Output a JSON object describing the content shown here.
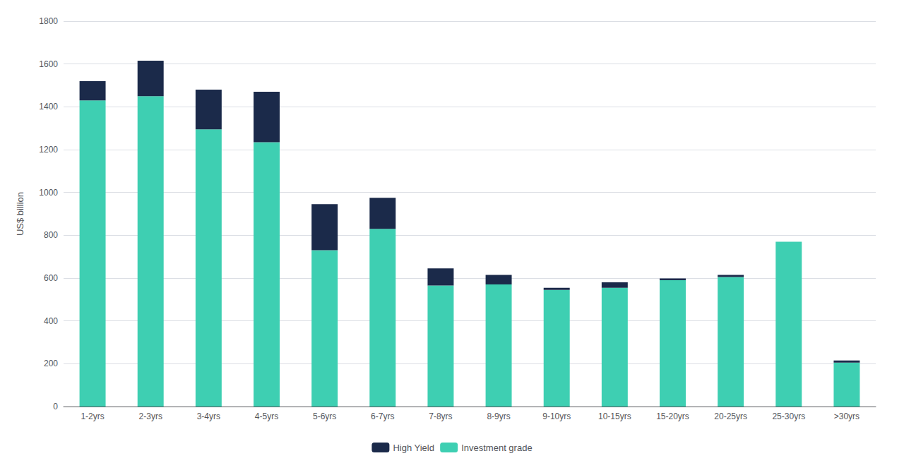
{
  "chart_data": {
    "type": "bar",
    "stacked": true,
    "categories": [
      "1-2yrs",
      "2-3yrs",
      "3-4yrs",
      "4-5yrs",
      "5-6yrs",
      "6-7yrs",
      "7-8yrs",
      "8-9yrs",
      "9-10yrs",
      "10-15yrs",
      "15-20yrs",
      "20-25yrs",
      "25-30yrs",
      ">30yrs"
    ],
    "series": [
      {
        "name": "Investment grade",
        "color": "#3ecfb2",
        "values": [
          1430,
          1450,
          1295,
          1235,
          730,
          830,
          565,
          570,
          545,
          555,
          590,
          605,
          770,
          205
        ]
      },
      {
        "name": "High Yield",
        "color": "#1b2a4a",
        "values": [
          90,
          165,
          185,
          235,
          215,
          145,
          80,
          45,
          10,
          25,
          8,
          10,
          0,
          10
        ]
      }
    ],
    "ylabel": "US$ billion",
    "ylim": [
      0,
      1800
    ],
    "yticks": [
      0,
      200,
      400,
      600,
      800,
      1000,
      1200,
      1400,
      1600,
      1800
    ],
    "grid": true,
    "legend": "bottom"
  }
}
